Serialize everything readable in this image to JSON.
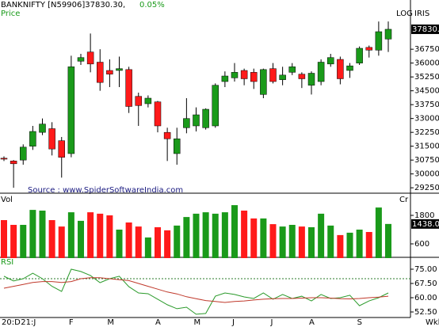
{
  "chart_data": [
    {
      "type": "candlestick",
      "title": "BANKNIFTY [N59906]37830.30,",
      "change": "0.05%",
      "panel_label": "Price",
      "scale_label": "LOG",
      "indicator_label": "IRIS",
      "source": "Source : www.SpiderSoftwareIndia.com",
      "up_color": "#1a9a1a",
      "down_color": "#ff1a1a",
      "categories": [
        "20:D",
        null,
        "21:J",
        null,
        null,
        null,
        null,
        "F",
        null,
        null,
        null,
        "M",
        null,
        null,
        null,
        null,
        "A",
        null,
        null,
        null,
        "M",
        null,
        null,
        null,
        "J",
        null,
        null,
        null,
        "J",
        null,
        null,
        null,
        "A",
        null,
        null,
        null,
        null,
        "S",
        null,
        null,
        null
      ],
      "x_unit": "Wkl",
      "open": [
        30850,
        30700,
        30750,
        31500,
        32250,
        32450,
        31800,
        31100,
        36100,
        36600,
        36050,
        35600,
        35600,
        35650,
        34200,
        33800,
        33900,
        32250,
        31100,
        32500,
        32600,
        32500,
        32600,
        35000,
        35200,
        35600,
        35500,
        34300,
        35700,
        35100,
        35500,
        35400,
        34800,
        35000,
        35950,
        36200,
        35600,
        36000,
        36850,
        36700,
        37300
      ],
      "high": [
        30950,
        30750,
        31600,
        32600,
        33000,
        32800,
        32000,
        36400,
        36500,
        37600,
        36750,
        36200,
        36350,
        35800,
        34400,
        34250,
        33950,
        32500,
        32500,
        34100,
        33600,
        33550,
        34900,
        35550,
        36000,
        35700,
        35700,
        35700,
        36000,
        35800,
        36000,
        35500,
        35550,
        36200,
        36500,
        36350,
        36000,
        36900,
        36950,
        38250,
        38250
      ],
      "low": [
        30700,
        29250,
        30500,
        31300,
        32100,
        31000,
        29800,
        30900,
        35900,
        35500,
        34500,
        34700,
        34700,
        33300,
        32600,
        33600,
        32250,
        30700,
        30500,
        32200,
        32300,
        32400,
        32500,
        34700,
        35000,
        34800,
        34600,
        34100,
        34900,
        34800,
        35350,
        34650,
        34300,
        34800,
        35800,
        34850,
        35200,
        35900,
        36300,
        36400,
        36600
      ],
      "close": [
        30800,
        30550,
        31450,
        32300,
        32700,
        31350,
        30900,
        35800,
        36300,
        35950,
        34950,
        35400,
        35700,
        33650,
        33700,
        34100,
        32600,
        31900,
        31900,
        33000,
        33200,
        33500,
        34800,
        35300,
        35500,
        35150,
        35000,
        35650,
        35000,
        35350,
        35800,
        35150,
        35450,
        36050,
        36300,
        35150,
        35850,
        36800,
        36700,
        37700,
        37830.3
      ],
      "ylim": [
        29000,
        38900
      ],
      "yticks": [
        36750,
        36000,
        35250,
        34500,
        33750,
        33000,
        32250,
        31500,
        30750,
        30000,
        29250
      ]
    },
    {
      "type": "bar",
      "panel_label": "Vol",
      "unit_label": "Cr",
      "values": [
        1600,
        1400,
        1400,
        2030,
        2000,
        1600,
        1330,
        1930,
        1570,
        1930,
        1870,
        1800,
        1200,
        1500,
        1330,
        870,
        1300,
        1170,
        1370,
        1730,
        1870,
        1930,
        1870,
        1930,
        2230,
        2000,
        1670,
        1670,
        1430,
        1330,
        1400,
        1330,
        1300,
        1870,
        1370,
        970,
        1070,
        1200,
        1100,
        2130,
        1438.06
      ],
      "ylim": [
        0,
        2700
      ],
      "yticks": [
        600,
        1800
      ]
    },
    {
      "type": "line",
      "panel_label": "RSI",
      "series": [
        {
          "color": "#2a9a2a",
          "values": [
            71.3,
            68.8,
            70,
            72.9,
            70,
            66,
            63.3,
            75,
            73.8,
            71.7,
            67.9,
            70,
            71.3,
            65.8,
            62.5,
            62.1,
            59.2,
            56.3,
            54.2,
            55,
            51.3,
            51.7,
            60.8,
            62.5,
            61.7,
            60.4,
            59.6,
            62.5,
            59.2,
            61.7,
            59.6,
            60.8,
            58.3,
            61.7,
            59.6,
            60,
            61.3,
            55.8,
            58.3,
            60,
            62.5
          ]
        },
        {
          "color": "#c0392b",
          "values": [
            65,
            66,
            67,
            68,
            68.5,
            68.5,
            68,
            68.5,
            70,
            70.5,
            70.5,
            70,
            69.5,
            69,
            67.5,
            66,
            64.5,
            63,
            62,
            60.5,
            59.5,
            58.5,
            58,
            57.5,
            58,
            58.3,
            58.8,
            59.2,
            59.5,
            59.6,
            59.6,
            59.8,
            60,
            60,
            59.8,
            59.5,
            59.4,
            59.6,
            60,
            60.3,
            60.8
          ]
        }
      ],
      "reference_line": 70,
      "ylim": [
        50,
        80
      ],
      "yticks": [
        {
          "value": 75,
          "label": "75.00"
        },
        {
          "value": 67.5,
          "label": "67.50"
        },
        {
          "value": 60,
          "label": "60.00"
        },
        {
          "value": 52.5,
          "label": "52.50"
        }
      ]
    }
  ]
}
